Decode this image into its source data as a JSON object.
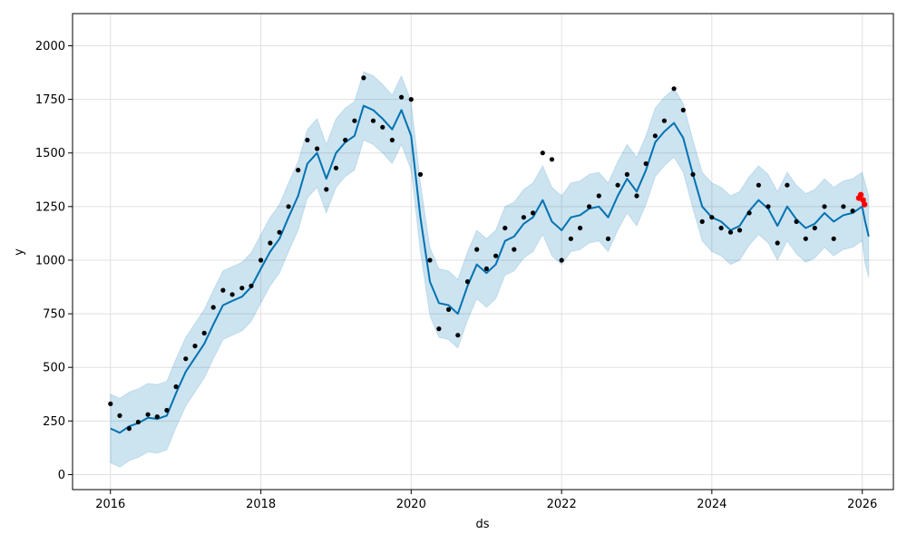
{
  "chart_data": {
    "type": "line",
    "title": "",
    "xlabel": "ds",
    "ylabel": "y",
    "xlim": [
      "2015-07-01",
      "2026-06-01"
    ],
    "ylim": [
      -70,
      2150
    ],
    "grid": true,
    "x_ticks": [
      "2016",
      "2018",
      "2020",
      "2022",
      "2024",
      "2026"
    ],
    "y_ticks": [
      0,
      250,
      500,
      750,
      1000,
      1250,
      1500,
      1750,
      2000
    ],
    "y_tick_labels": [
      "0",
      "250",
      "500",
      "750",
      "1000",
      "1250",
      "1500",
      "1750",
      "2000"
    ],
    "colors": {
      "observed": "#000000",
      "forecast": "#0072b2",
      "uncertainty": "#0072b2",
      "highlight": "#ff0000",
      "grid": "#e0e0e0"
    },
    "series": [
      {
        "role": "observed",
        "style": "points",
        "x": [
          "2016-01-01",
          "2016-02-15",
          "2016-04-01",
          "2016-05-15",
          "2016-07-01",
          "2016-08-15",
          "2016-10-01",
          "2016-11-15",
          "2017-01-01",
          "2017-02-15",
          "2017-04-01",
          "2017-05-15",
          "2017-07-01",
          "2017-08-15",
          "2017-10-01",
          "2017-11-15",
          "2018-01-01",
          "2018-02-15",
          "2018-04-01",
          "2018-05-15",
          "2018-07-01",
          "2018-08-15",
          "2018-10-01",
          "2018-11-15",
          "2019-01-01",
          "2019-02-15",
          "2019-04-01",
          "2019-05-15",
          "2019-07-01",
          "2019-08-15",
          "2019-10-01",
          "2019-11-15",
          "2020-01-01",
          "2020-02-15",
          "2020-04-01",
          "2020-05-15",
          "2020-07-01",
          "2020-08-15",
          "2020-10-01",
          "2020-11-15",
          "2021-01-01",
          "2021-02-15",
          "2021-04-01",
          "2021-05-15",
          "2021-07-01",
          "2021-08-15",
          "2021-10-01",
          "2021-11-15",
          "2022-01-01",
          "2022-02-15",
          "2022-04-01",
          "2022-05-15",
          "2022-07-01",
          "2022-08-15",
          "2022-10-01",
          "2022-11-15",
          "2023-01-01",
          "2023-02-15",
          "2023-04-01",
          "2023-05-15",
          "2023-07-01",
          "2023-08-15",
          "2023-10-01",
          "2023-11-15",
          "2024-01-01",
          "2024-02-15",
          "2024-04-01",
          "2024-05-15",
          "2024-07-01",
          "2024-08-15",
          "2024-10-01",
          "2024-11-15",
          "2025-01-01",
          "2025-02-15",
          "2025-04-01",
          "2025-05-15",
          "2025-07-01",
          "2025-08-15",
          "2025-10-01",
          "2025-11-15"
        ],
        "y": [
          330,
          275,
          215,
          245,
          280,
          270,
          300,
          410,
          540,
          600,
          660,
          780,
          860,
          840,
          870,
          880,
          1000,
          1080,
          1130,
          1250,
          1420,
          1560,
          1520,
          1330,
          1430,
          1560,
          1650,
          1850,
          1650,
          1620,
          1560,
          1760,
          1750,
          1400,
          1000,
          680,
          770,
          650,
          900,
          1050,
          960,
          1020,
          1150,
          1050,
          1200,
          1220,
          1500,
          1470,
          1000,
          1100,
          1150,
          1250,
          1300,
          1100,
          1350,
          1400,
          1300,
          1450,
          1580,
          1650,
          1800,
          1700,
          1400,
          1180,
          1200,
          1150,
          1130,
          1140,
          1220,
          1350,
          1250,
          1080,
          1350,
          1180,
          1100,
          1150,
          1250,
          1100,
          1250,
          1230
        ]
      },
      {
        "role": "forecast",
        "style": "line",
        "x": [
          "2016-01-01",
          "2016-02-15",
          "2016-04-01",
          "2016-05-15",
          "2016-07-01",
          "2016-08-15",
          "2016-10-01",
          "2016-11-15",
          "2017-01-01",
          "2017-02-15",
          "2017-04-01",
          "2017-05-15",
          "2017-07-01",
          "2017-08-15",
          "2017-10-01",
          "2017-11-15",
          "2018-01-01",
          "2018-02-15",
          "2018-04-01",
          "2018-05-15",
          "2018-07-01",
          "2018-08-15",
          "2018-10-01",
          "2018-11-15",
          "2019-01-01",
          "2019-02-15",
          "2019-04-01",
          "2019-05-15",
          "2019-07-01",
          "2019-08-15",
          "2019-10-01",
          "2019-11-15",
          "2020-01-01",
          "2020-02-15",
          "2020-04-01",
          "2020-05-15",
          "2020-07-01",
          "2020-08-15",
          "2020-10-01",
          "2020-11-15",
          "2021-01-01",
          "2021-02-15",
          "2021-04-01",
          "2021-05-15",
          "2021-07-01",
          "2021-08-15",
          "2021-10-01",
          "2021-11-15",
          "2022-01-01",
          "2022-02-15",
          "2022-04-01",
          "2022-05-15",
          "2022-07-01",
          "2022-08-15",
          "2022-10-01",
          "2022-11-15",
          "2023-01-01",
          "2023-02-15",
          "2023-04-01",
          "2023-05-15",
          "2023-07-01",
          "2023-08-15",
          "2023-10-01",
          "2023-11-15",
          "2024-01-01",
          "2024-02-15",
          "2024-04-01",
          "2024-05-15",
          "2024-07-01",
          "2024-08-15",
          "2024-10-01",
          "2024-11-15",
          "2025-01-01",
          "2025-02-15",
          "2025-04-01",
          "2025-05-15",
          "2025-07-01",
          "2025-08-15",
          "2025-10-01",
          "2025-11-15",
          "2025-12-31",
          "2026-01-15",
          "2026-02-01"
        ],
        "y": [
          215,
          195,
          225,
          240,
          265,
          260,
          275,
          380,
          480,
          545,
          610,
          700,
          790,
          810,
          830,
          875,
          960,
          1040,
          1100,
          1200,
          1300,
          1450,
          1500,
          1380,
          1500,
          1550,
          1580,
          1720,
          1700,
          1660,
          1610,
          1700,
          1580,
          1200,
          900,
          800,
          790,
          750,
          880,
          980,
          940,
          980,
          1090,
          1110,
          1170,
          1200,
          1280,
          1180,
          1140,
          1200,
          1210,
          1240,
          1250,
          1200,
          1300,
          1380,
          1320,
          1420,
          1550,
          1600,
          1640,
          1570,
          1400,
          1250,
          1200,
          1180,
          1140,
          1160,
          1230,
          1280,
          1240,
          1160,
          1250,
          1190,
          1150,
          1170,
          1220,
          1180,
          1210,
          1220,
          1250,
          1180,
          1110
        ]
      },
      {
        "role": "uncertainty",
        "style": "band",
        "x": [
          "2016-01-01",
          "2016-02-15",
          "2016-04-01",
          "2016-05-15",
          "2016-07-01",
          "2016-08-15",
          "2016-10-01",
          "2016-11-15",
          "2017-01-01",
          "2017-02-15",
          "2017-04-01",
          "2017-05-15",
          "2017-07-01",
          "2017-08-15",
          "2017-10-01",
          "2017-11-15",
          "2018-01-01",
          "2018-02-15",
          "2018-04-01",
          "2018-05-15",
          "2018-07-01",
          "2018-08-15",
          "2018-10-01",
          "2018-11-15",
          "2019-01-01",
          "2019-02-15",
          "2019-04-01",
          "2019-05-15",
          "2019-07-01",
          "2019-08-15",
          "2019-10-01",
          "2019-11-15",
          "2020-01-01",
          "2020-02-15",
          "2020-04-01",
          "2020-05-15",
          "2020-07-01",
          "2020-08-15",
          "2020-10-01",
          "2020-11-15",
          "2021-01-01",
          "2021-02-15",
          "2021-04-01",
          "2021-05-15",
          "2021-07-01",
          "2021-08-15",
          "2021-10-01",
          "2021-11-15",
          "2022-01-01",
          "2022-02-15",
          "2022-04-01",
          "2022-05-15",
          "2022-07-01",
          "2022-08-15",
          "2022-10-01",
          "2022-11-15",
          "2023-01-01",
          "2023-02-15",
          "2023-04-01",
          "2023-05-15",
          "2023-07-01",
          "2023-08-15",
          "2023-10-01",
          "2023-11-15",
          "2024-01-01",
          "2024-02-15",
          "2024-04-01",
          "2024-05-15",
          "2024-07-01",
          "2024-08-15",
          "2024-10-01",
          "2024-11-15",
          "2025-01-01",
          "2025-02-15",
          "2025-04-01",
          "2025-05-15",
          "2025-07-01",
          "2025-08-15",
          "2025-10-01",
          "2025-11-15",
          "2025-12-31",
          "2026-01-15",
          "2026-02-01"
        ],
        "lower": [
          55,
          35,
          65,
          80,
          105,
          100,
          115,
          220,
          320,
          385,
          450,
          540,
          630,
          650,
          670,
          715,
          800,
          880,
          940,
          1040,
          1140,
          1290,
          1340,
          1220,
          1340,
          1390,
          1420,
          1560,
          1540,
          1500,
          1450,
          1540,
          1420,
          1040,
          740,
          640,
          630,
          590,
          720,
          820,
          780,
          820,
          930,
          950,
          1010,
          1040,
          1120,
          1020,
          980,
          1040,
          1050,
          1080,
          1090,
          1040,
          1140,
          1220,
          1160,
          1260,
          1390,
          1440,
          1480,
          1410,
          1240,
          1090,
          1040,
          1020,
          980,
          1000,
          1070,
          1120,
          1080,
          1000,
          1090,
          1030,
          990,
          1010,
          1060,
          1020,
          1050,
          1060,
          1090,
          980,
          920
        ],
        "upper": [
          375,
          355,
          385,
          400,
          425,
          420,
          435,
          540,
          640,
          705,
          770,
          860,
          950,
          970,
          990,
          1035,
          1120,
          1200,
          1260,
          1360,
          1460,
          1610,
          1660,
          1540,
          1660,
          1710,
          1740,
          1880,
          1860,
          1820,
          1770,
          1860,
          1740,
          1360,
          1060,
          960,
          950,
          910,
          1040,
          1140,
          1100,
          1140,
          1250,
          1270,
          1330,
          1360,
          1440,
          1340,
          1300,
          1360,
          1370,
          1400,
          1410,
          1360,
          1460,
          1540,
          1480,
          1580,
          1710,
          1760,
          1800,
          1730,
          1560,
          1410,
          1360,
          1340,
          1300,
          1320,
          1390,
          1440,
          1400,
          1320,
          1410,
          1350,
          1310,
          1330,
          1380,
          1340,
          1370,
          1380,
          1410,
          1360,
          1300
        ]
      },
      {
        "role": "highlight",
        "style": "points",
        "x": [
          "2025-12-15",
          "2025-12-25",
          "2026-01-05",
          "2026-01-12"
        ],
        "y": [
          1290,
          1305,
          1280,
          1260
        ]
      }
    ]
  }
}
